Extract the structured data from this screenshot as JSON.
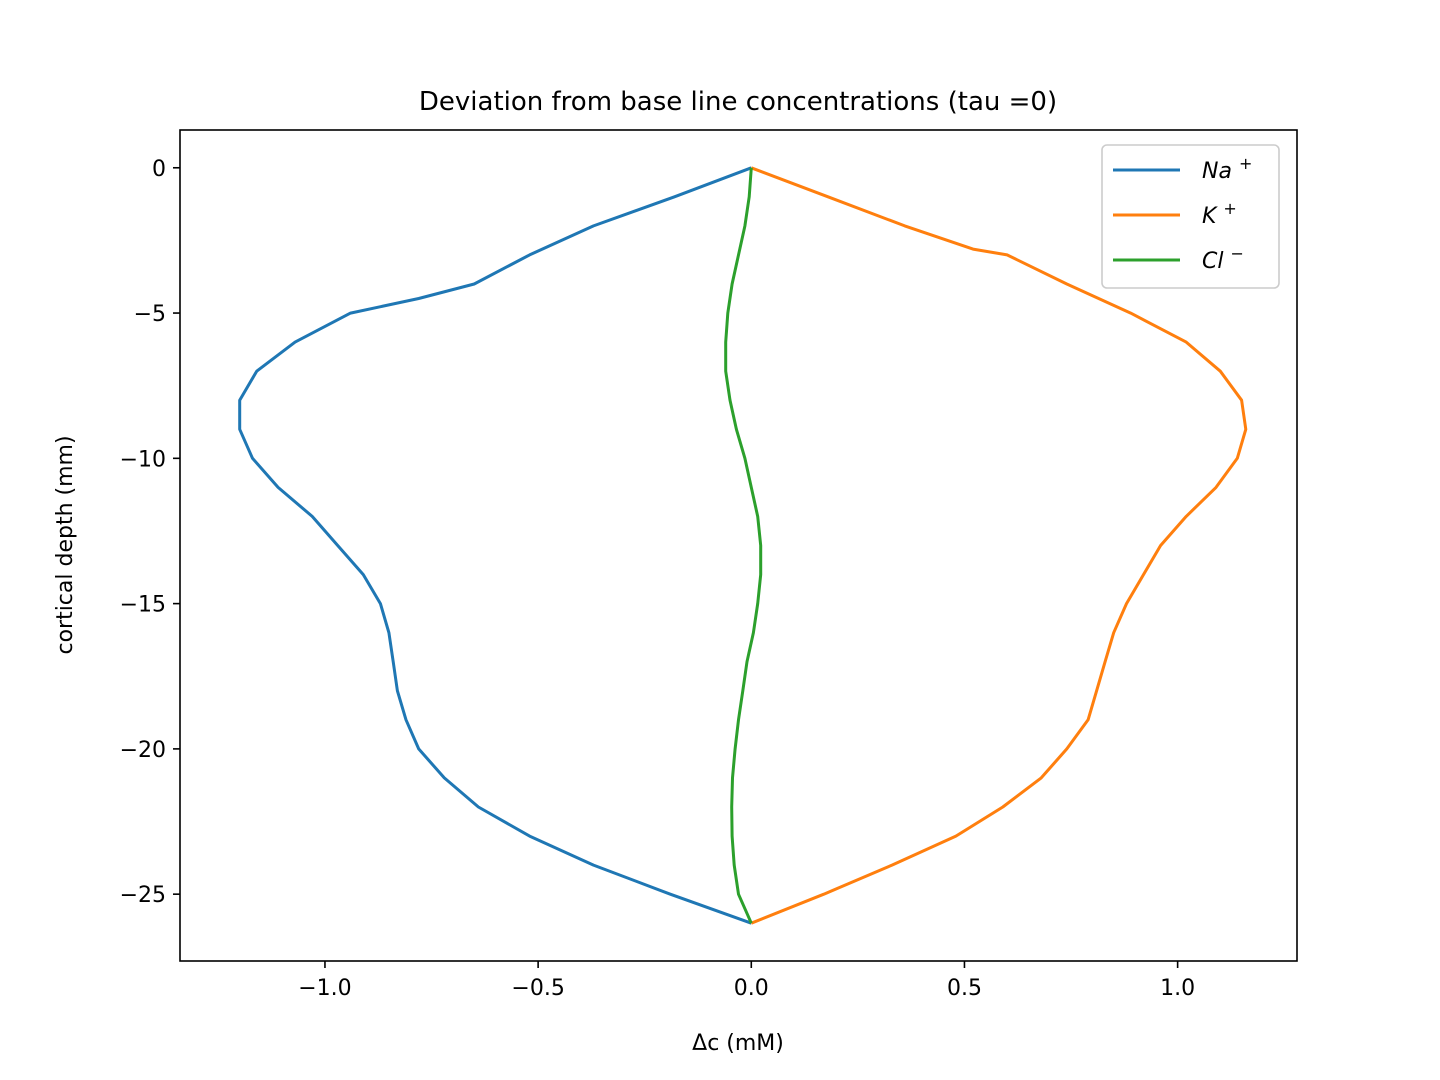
{
  "chart_data": {
    "type": "line",
    "title": "Deviation from base line concentrations (tau =0)",
    "xlabel": "Δc (mM)",
    "ylabel": "cortical depth (mm)",
    "xlim": [
      -1.34,
      1.28
    ],
    "ylim": [
      -27.3,
      1.3
    ],
    "xticks": [
      {
        "value": -1.0,
        "label": "−1.0"
      },
      {
        "value": -0.5,
        "label": "−0.5"
      },
      {
        "value": 0.0,
        "label": "0.0"
      },
      {
        "value": 0.5,
        "label": "0.5"
      },
      {
        "value": 1.0,
        "label": "1.0"
      }
    ],
    "yticks": [
      {
        "value": 0,
        "label": "0"
      },
      {
        "value": -5,
        "label": "−5"
      },
      {
        "value": -10,
        "label": "−10"
      },
      {
        "value": -15,
        "label": "−15"
      },
      {
        "value": -20,
        "label": "−20"
      },
      {
        "value": -25,
        "label": "−25"
      }
    ],
    "grid": false,
    "legend_position": "top-right",
    "series": [
      {
        "name": "Na",
        "superscript": "+",
        "color": "#1f77b4",
        "x": [
          0.0,
          -0.18,
          -0.37,
          -0.52,
          -0.65,
          -0.78,
          -0.94,
          -1.07,
          -1.16,
          -1.2,
          -1.2,
          -1.17,
          -1.11,
          -1.03,
          -0.97,
          -0.91,
          -0.87,
          -0.85,
          -0.84,
          -0.83,
          -0.81,
          -0.78,
          -0.72,
          -0.64,
          -0.52,
          -0.37,
          -0.19,
          0.0
        ],
        "y": [
          0,
          -1,
          -2,
          -3,
          -4,
          -4.5,
          -5,
          -6,
          -7,
          -8,
          -9,
          -10,
          -11,
          -12,
          -13,
          -14,
          -15,
          -16,
          -17,
          -18,
          -19,
          -20,
          -21,
          -22,
          -23,
          -24,
          -25,
          -26
        ]
      },
      {
        "name": "K",
        "superscript": "+",
        "color": "#ff7f0e",
        "x": [
          0.0,
          0.18,
          0.36,
          0.52,
          0.6,
          0.74,
          0.89,
          1.02,
          1.1,
          1.15,
          1.16,
          1.14,
          1.09,
          1.02,
          0.96,
          0.92,
          0.88,
          0.85,
          0.83,
          0.81,
          0.79,
          0.74,
          0.68,
          0.59,
          0.48,
          0.33,
          0.17,
          0.0
        ],
        "y": [
          0,
          -1,
          -2,
          -2.8,
          -3,
          -4,
          -5,
          -6,
          -7,
          -8,
          -9,
          -10,
          -11,
          -12,
          -13,
          -14,
          -15,
          -16,
          -17,
          -18,
          -19,
          -20,
          -21,
          -22,
          -23,
          -24,
          -25,
          -26
        ]
      },
      {
        "name": "Cl",
        "superscript": "−",
        "color": "#2ca02c",
        "x": [
          0.0,
          -0.005,
          -0.015,
          -0.03,
          -0.045,
          -0.055,
          -0.06,
          -0.06,
          -0.05,
          -0.035,
          -0.015,
          0.0,
          0.015,
          0.022,
          0.022,
          0.015,
          0.005,
          -0.01,
          -0.02,
          -0.03,
          -0.038,
          -0.044,
          -0.046,
          -0.045,
          -0.04,
          -0.03,
          -0.015,
          0.0
        ],
        "y": [
          0,
          -1,
          -2,
          -3,
          -4,
          -5,
          -6,
          -7,
          -8,
          -9,
          -10,
          -11,
          -12,
          -13,
          -14,
          -15,
          -16,
          -17,
          -18,
          -19,
          -20,
          -21,
          -22,
          -23,
          -24,
          -25,
          -25.5,
          -26
        ]
      }
    ]
  }
}
